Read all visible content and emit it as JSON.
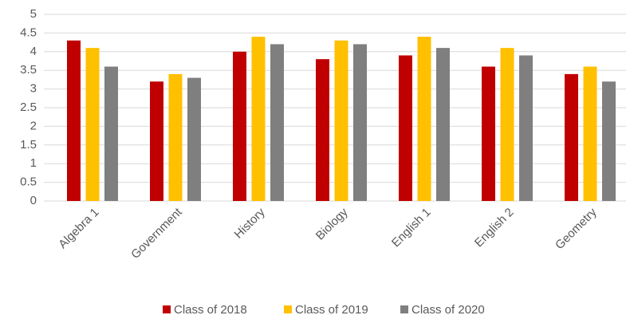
{
  "chart_data": {
    "type": "bar",
    "categories": [
      "Algebra 1",
      "Government",
      "History",
      "Biology",
      "English 1",
      "English 2",
      "Geometry"
    ],
    "series": [
      {
        "name": "Class of 2018",
        "color": "#c00000",
        "values": [
          4.3,
          3.2,
          4.0,
          3.8,
          3.9,
          3.6,
          3.4
        ]
      },
      {
        "name": "Class of 2019",
        "color": "#ffc000",
        "values": [
          4.1,
          3.4,
          4.4,
          4.3,
          4.4,
          4.1,
          3.6
        ]
      },
      {
        "name": "Class of 2020",
        "color": "#7f7f7f",
        "values": [
          3.6,
          3.3,
          4.2,
          4.2,
          4.1,
          3.9,
          3.2
        ]
      }
    ],
    "ylim": [
      0,
      5
    ],
    "yticks": [
      0,
      0.5,
      1,
      1.5,
      2,
      2.5,
      3,
      3.5,
      4,
      4.5,
      5
    ],
    "grid": true,
    "legend": "bottom"
  }
}
